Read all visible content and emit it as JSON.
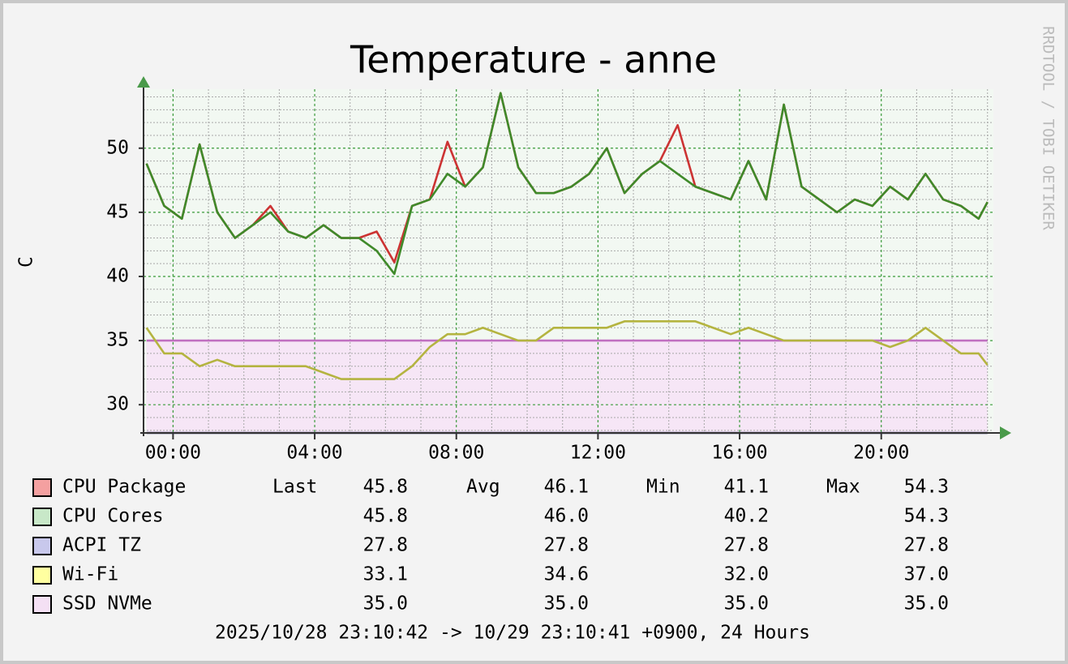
{
  "chart_data": {
    "type": "line",
    "title": "Temperature - anne",
    "y_label": "C",
    "watermark": "RRDTOOL / TOBI OETIKER",
    "footer": "2025/10/28 23:10:42 -> 10/29 23:10:41 +0900, 24 Hours",
    "stats_labels": [
      "Last",
      "Avg",
      "Min",
      "Max"
    ],
    "x": [
      -0.75,
      -0.25,
      0.25,
      0.75,
      1.25,
      1.75,
      2.25,
      2.75,
      3.25,
      3.75,
      4.25,
      4.75,
      5.25,
      5.75,
      6.25,
      6.75,
      7.25,
      7.75,
      8.25,
      8.75,
      9.25,
      9.75,
      10.25,
      10.75,
      11.25,
      11.75,
      12.25,
      12.75,
      13.25,
      13.75,
      14.25,
      14.75,
      15.25,
      15.75,
      16.25,
      16.75,
      17.25,
      17.75,
      18.25,
      18.75,
      19.25,
      19.75,
      20.25,
      20.75,
      21.25,
      21.75,
      22.25,
      22.75,
      23.0
    ],
    "xlim": [
      -0.8333,
      23.1667
    ],
    "xticks": [
      {
        "value": 0,
        "label": "00:00"
      },
      {
        "value": 4,
        "label": "04:00"
      },
      {
        "value": 8,
        "label": "08:00"
      },
      {
        "value": 12,
        "label": "12:00"
      },
      {
        "value": 16,
        "label": "16:00"
      },
      {
        "value": 20,
        "label": "20:00"
      }
    ],
    "xminorticks": [
      1,
      2,
      3,
      5,
      6,
      7,
      9,
      10,
      11,
      13,
      14,
      15,
      17,
      18,
      19,
      21,
      22,
      23
    ],
    "ylim": [
      27.8,
      54.6
    ],
    "yticks": [
      30,
      35,
      40,
      45,
      50
    ],
    "yminorticks": [
      28,
      29,
      31,
      32,
      33,
      34,
      36,
      37,
      38,
      39,
      41,
      42,
      43,
      44,
      46,
      47,
      48,
      49,
      51,
      52,
      53,
      54
    ],
    "grid": true,
    "series": [
      {
        "name": "CPU Package",
        "color": "#cc3333",
        "legend_color": "#f4a0a0",
        "values": [
          48.8,
          45.5,
          44.5,
          50.3,
          45,
          43,
          44,
          45.5,
          43.5,
          43,
          44,
          43,
          43,
          43.5,
          41.1,
          45.5,
          46,
          50.5,
          47,
          48.5,
          54.3,
          48.5,
          46.5,
          46.5,
          47,
          48,
          50,
          46.5,
          48,
          49,
          51.8,
          47,
          46.5,
          46,
          49,
          46,
          53.4,
          47,
          46,
          45,
          46,
          45.5,
          47,
          46,
          48,
          46,
          45.5,
          44.5,
          45.8
        ],
        "stats": {
          "last": "45.8",
          "avg": "46.1",
          "min": "41.1",
          "max": "54.3"
        }
      },
      {
        "name": "CPU Cores",
        "color": "#3f8a2a",
        "legend_color": "#c8e8c8",
        "values": [
          48.8,
          45.5,
          44.5,
          50.3,
          45,
          43,
          44,
          45,
          43.5,
          43,
          44,
          43,
          43,
          42,
          40.2,
          45.5,
          46,
          48,
          47,
          48.5,
          54.3,
          48.5,
          46.5,
          46.5,
          47,
          48,
          50,
          46.5,
          48,
          49,
          48,
          47,
          46.5,
          46,
          49,
          46,
          53.4,
          47,
          46,
          45,
          46,
          45.5,
          47,
          46,
          48,
          46,
          45.5,
          44.5,
          45.8
        ],
        "stats": {
          "last": "45.8",
          "avg": "46.0",
          "min": "40.2",
          "max": "54.3"
        }
      },
      {
        "name": "ACPI TZ",
        "color": "#333366",
        "legend_color": "#c8c8ec",
        "values": [
          27.8,
          27.8,
          27.8,
          27.8,
          27.8,
          27.8,
          27.8,
          27.8,
          27.8,
          27.8,
          27.8,
          27.8,
          27.8,
          27.8,
          27.8,
          27.8,
          27.8,
          27.8,
          27.8,
          27.8,
          27.8,
          27.8,
          27.8,
          27.8,
          27.8,
          27.8,
          27.8,
          27.8,
          27.8,
          27.8,
          27.8,
          27.8,
          27.8,
          27.8,
          27.8,
          27.8,
          27.8,
          27.8,
          27.8,
          27.8,
          27.8,
          27.8,
          27.8,
          27.8,
          27.8,
          27.8,
          27.8,
          27.8,
          27.8
        ],
        "stats": {
          "last": "27.8",
          "avg": "27.8",
          "min": "27.8",
          "max": "27.8"
        }
      },
      {
        "name": "Wi-Fi",
        "color": "#b4b440",
        "legend_color": "#ffffa0",
        "values": [
          36,
          34,
          34,
          33,
          33.5,
          33,
          33,
          33,
          33,
          33,
          32.5,
          32,
          32,
          32,
          32,
          33,
          34.5,
          35.5,
          35.5,
          36,
          35.5,
          35,
          35,
          36,
          36,
          36,
          36,
          36.5,
          36.5,
          36.5,
          36.5,
          36.5,
          36,
          35.5,
          36,
          35.5,
          35,
          35,
          35,
          35,
          35,
          35,
          34.5,
          35,
          36,
          35,
          34,
          34,
          33.1
        ],
        "stats": {
          "last": "33.1",
          "avg": "34.6",
          "min": "32.0",
          "max": "37.0"
        }
      },
      {
        "name": "SSD NVMe",
        "color": "#c070c0",
        "legend_color": "#f4e0f4",
        "area": true,
        "area_color": "#f6e6f6",
        "values": [
          35,
          35,
          35,
          35,
          35,
          35,
          35,
          35,
          35,
          35,
          35,
          35,
          35,
          35,
          35,
          35,
          35,
          35,
          35,
          35,
          35,
          35,
          35,
          35,
          35,
          35,
          35,
          35,
          35,
          35,
          35,
          35,
          35,
          35,
          35,
          35,
          35,
          35,
          35,
          35,
          35,
          35,
          35,
          35,
          35,
          35,
          35,
          35,
          35
        ],
        "stats": {
          "last": "35.0",
          "avg": "35.0",
          "min": "35.0",
          "max": "35.0"
        }
      }
    ]
  }
}
